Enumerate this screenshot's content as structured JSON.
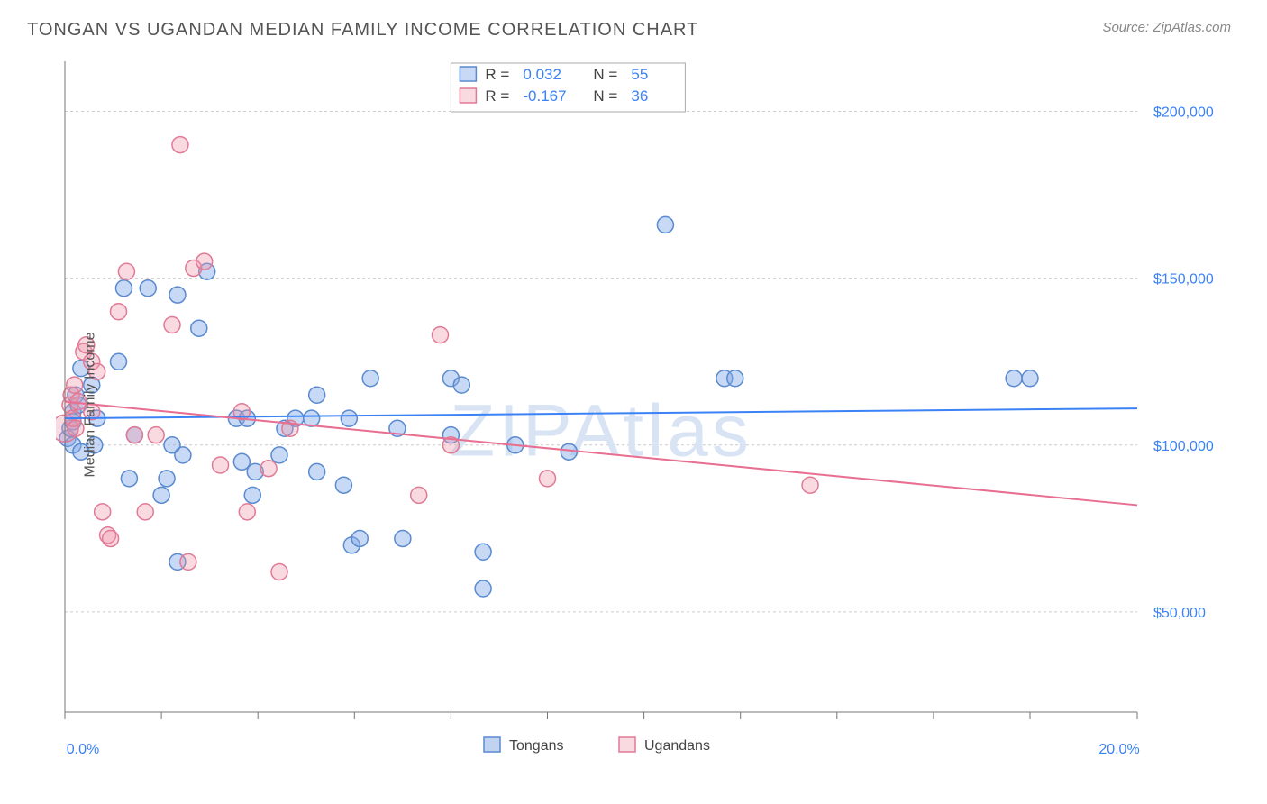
{
  "title": "TONGAN VS UGANDAN MEDIAN FAMILY INCOME CORRELATION CHART",
  "source_label": "Source: ZipAtlas.com",
  "watermark": "ZIPAtlas",
  "y_axis_label": "Median Family Income",
  "chart": {
    "type": "scatter",
    "background_color": "#ffffff",
    "grid_color": "#cccccc",
    "axis_color": "#777777",
    "tick_label_color": "#3b82f6",
    "xlim": [
      0,
      20
    ],
    "ylim": [
      20000,
      215000
    ],
    "x_tick_positions": [
      0,
      1.8,
      3.6,
      5.4,
      7.2,
      9.0,
      10.8,
      12.6,
      14.4,
      16.2,
      18.0,
      20.0
    ],
    "x_tick_labels": {
      "0": "0.0%",
      "20": "20.0%"
    },
    "y_grid": [
      50000,
      100000,
      150000,
      200000
    ],
    "y_tick_labels": [
      "$50,000",
      "$100,000",
      "$150,000",
      "$200,000"
    ],
    "marker_radius": 9,
    "marker_stroke_width": 1.5,
    "trend_line_width": 2,
    "series": [
      {
        "name": "Tongans",
        "fill_color": "rgba(130,170,230,0.45)",
        "stroke_color": "#5a8ad0",
        "trend_color": "#3b82f6",
        "R": "0.032",
        "N": "55",
        "trend": {
          "x1": 0,
          "y1": 108000,
          "x2": 20,
          "y2": 111000
        },
        "points": [
          [
            0.05,
            102000
          ],
          [
            0.1,
            105000
          ],
          [
            0.15,
            110000
          ],
          [
            0.15,
            100000
          ],
          [
            0.15,
            107000
          ],
          [
            0.2,
            115000
          ],
          [
            0.25,
            112000
          ],
          [
            0.3,
            98000
          ],
          [
            0.3,
            123000
          ],
          [
            0.5,
            118000
          ],
          [
            0.55,
            100000
          ],
          [
            0.6,
            108000
          ],
          [
            1.0,
            125000
          ],
          [
            1.1,
            147000
          ],
          [
            1.2,
            90000
          ],
          [
            1.3,
            103000
          ],
          [
            1.55,
            147000
          ],
          [
            1.8,
            85000
          ],
          [
            1.9,
            90000
          ],
          [
            2.0,
            100000
          ],
          [
            2.1,
            145000
          ],
          [
            2.1,
            65000
          ],
          [
            2.2,
            97000
          ],
          [
            2.5,
            135000
          ],
          [
            2.65,
            152000
          ],
          [
            3.2,
            108000
          ],
          [
            3.3,
            95000
          ],
          [
            3.4,
            108000
          ],
          [
            3.5,
            85000
          ],
          [
            3.55,
            92000
          ],
          [
            4.0,
            97000
          ],
          [
            4.1,
            105000
          ],
          [
            4.3,
            108000
          ],
          [
            4.6,
            108000
          ],
          [
            4.7,
            115000
          ],
          [
            4.7,
            92000
          ],
          [
            5.2,
            88000
          ],
          [
            5.3,
            108000
          ],
          [
            5.35,
            70000
          ],
          [
            5.5,
            72000
          ],
          [
            5.7,
            120000
          ],
          [
            6.2,
            105000
          ],
          [
            6.3,
            72000
          ],
          [
            7.2,
            103000
          ],
          [
            7.2,
            120000
          ],
          [
            7.4,
            118000
          ],
          [
            7.8,
            57000
          ],
          [
            7.8,
            68000
          ],
          [
            8.4,
            100000
          ],
          [
            9.4,
            98000
          ],
          [
            11.2,
            166000
          ],
          [
            12.3,
            120000
          ],
          [
            12.5,
            120000
          ],
          [
            17.7,
            120000
          ],
          [
            18.0,
            120000
          ]
        ]
      },
      {
        "name": "Ugandans",
        "fill_color": "rgba(240,150,170,0.35)",
        "stroke_color": "#e07a95",
        "trend_color": "#e86f91",
        "R": "-0.167",
        "N": "36",
        "trend": {
          "x1": 0,
          "y1": 113000,
          "x2": 20,
          "y2": 82000
        },
        "points": [
          [
            0.0,
            105000,
            15
          ],
          [
            0.1,
            112000
          ],
          [
            0.12,
            115000
          ],
          [
            0.15,
            108000
          ],
          [
            0.18,
            118000
          ],
          [
            0.2,
            105000
          ],
          [
            0.25,
            113000
          ],
          [
            0.35,
            128000
          ],
          [
            0.4,
            130000
          ],
          [
            0.5,
            125000
          ],
          [
            0.5,
            110000
          ],
          [
            0.6,
            122000
          ],
          [
            0.7,
            80000
          ],
          [
            0.8,
            73000
          ],
          [
            0.85,
            72000
          ],
          [
            1.0,
            140000
          ],
          [
            1.15,
            152000
          ],
          [
            1.3,
            103000
          ],
          [
            1.5,
            80000
          ],
          [
            1.7,
            103000
          ],
          [
            2.0,
            136000
          ],
          [
            2.15,
            190000
          ],
          [
            2.3,
            65000
          ],
          [
            2.4,
            153000
          ],
          [
            2.6,
            155000
          ],
          [
            2.9,
            94000
          ],
          [
            3.3,
            110000
          ],
          [
            3.4,
            80000
          ],
          [
            3.8,
            93000
          ],
          [
            4.0,
            62000
          ],
          [
            4.2,
            105000
          ],
          [
            6.6,
            85000
          ],
          [
            7.0,
            133000
          ],
          [
            7.2,
            100000
          ],
          [
            9.0,
            90000
          ],
          [
            13.9,
            88000
          ]
        ]
      }
    ]
  },
  "legend_top": {
    "r_label": "R =",
    "n_label": "N ="
  },
  "legend_bottom": [
    "Tongans",
    "Ugandans"
  ]
}
